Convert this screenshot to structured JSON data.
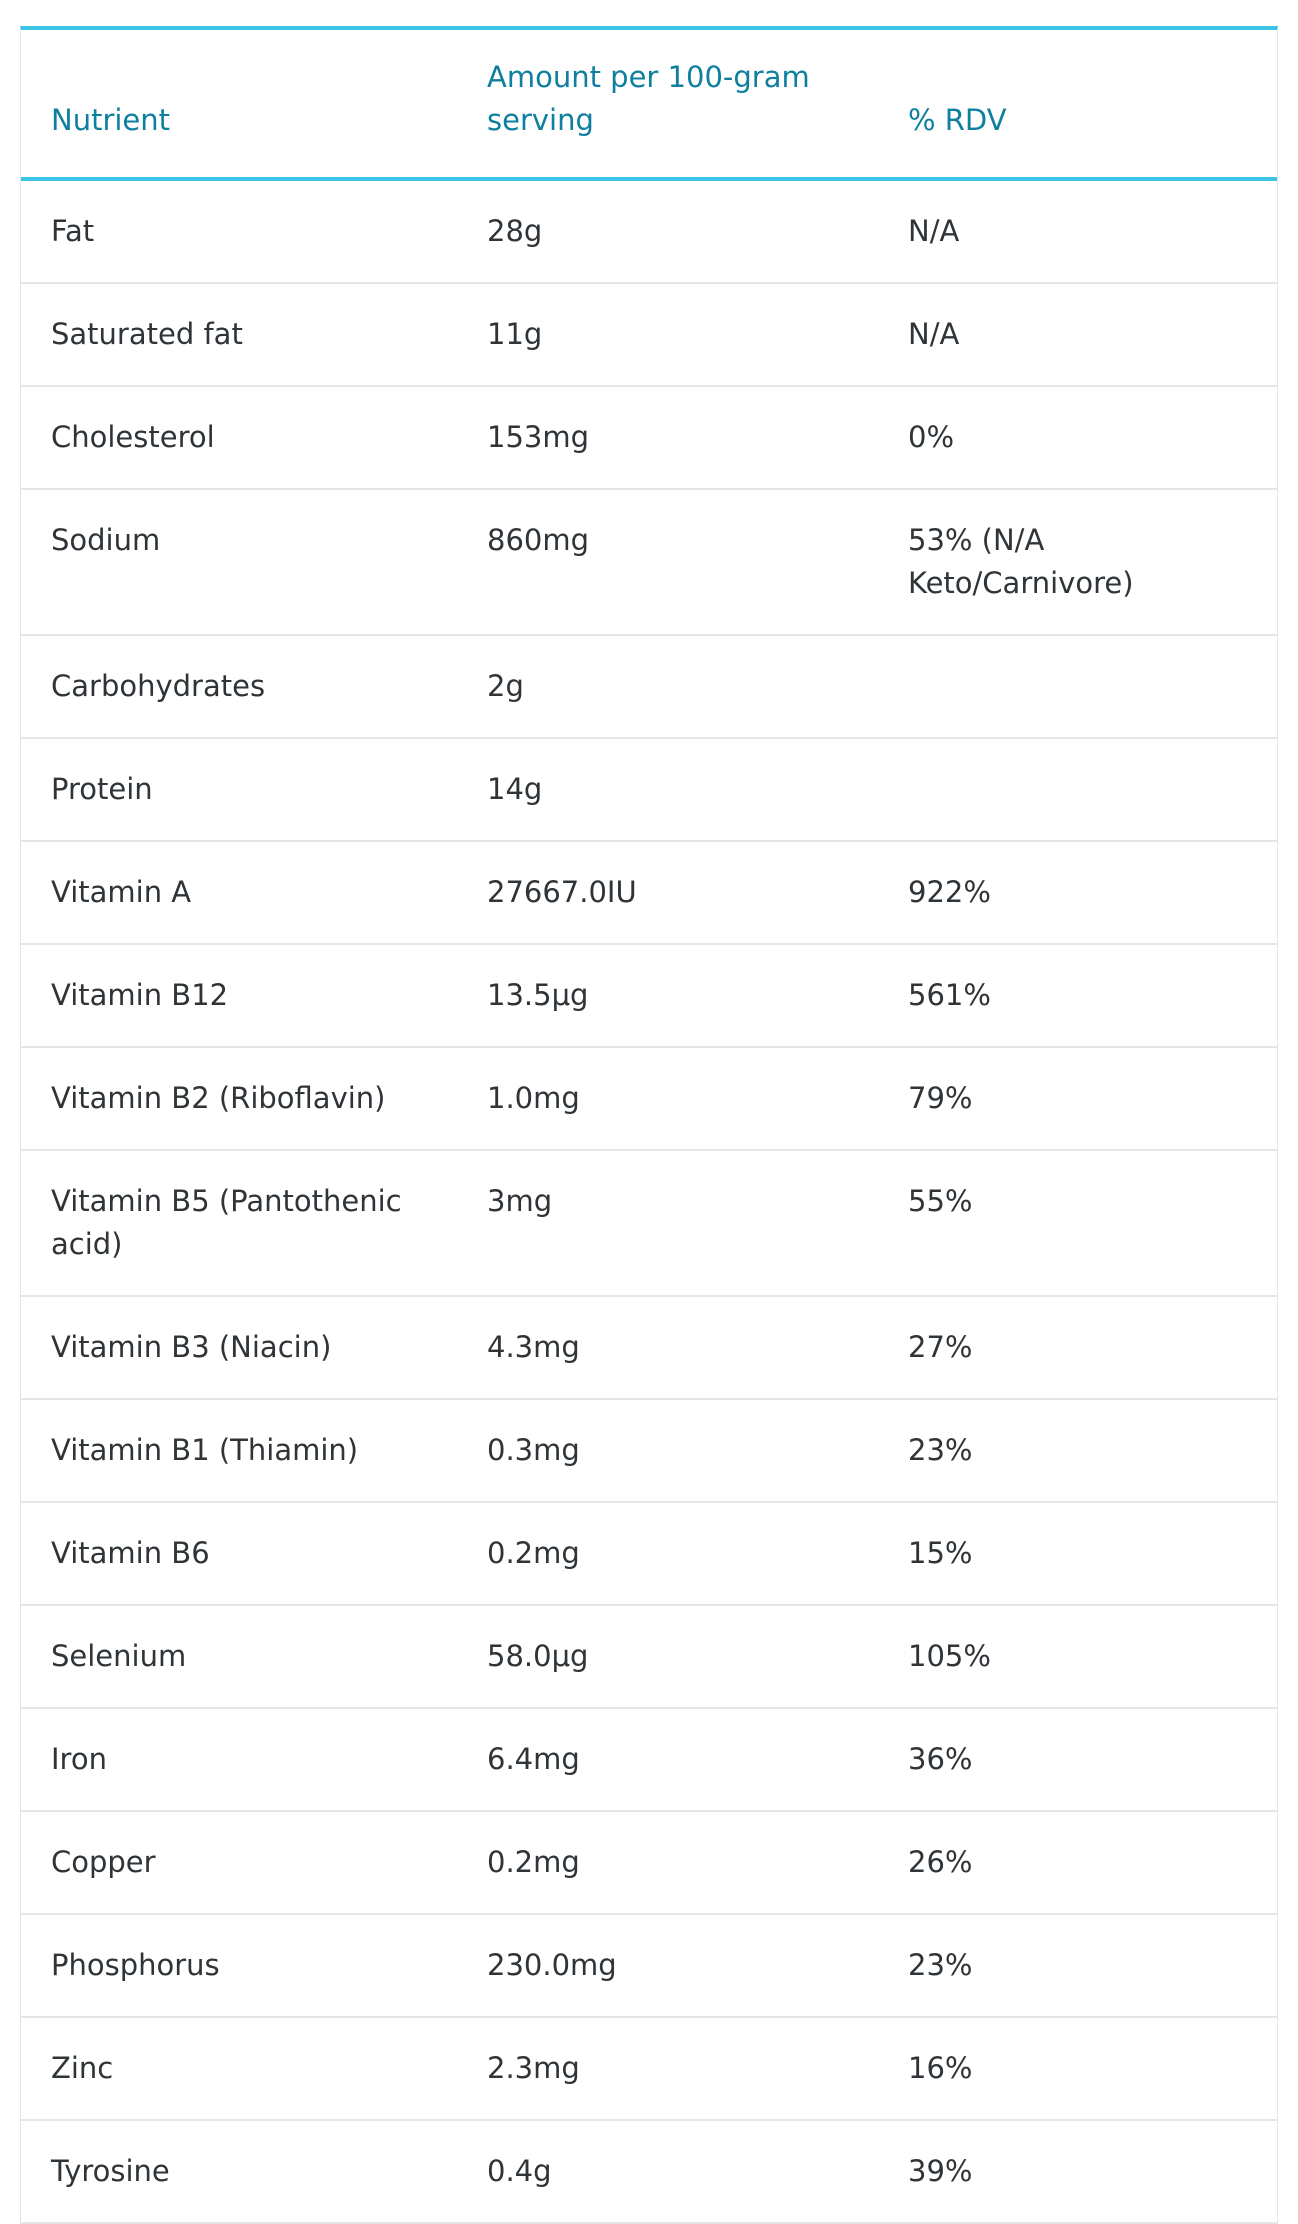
{
  "table": {
    "headers": [
      "Nutrient",
      "Amount per 100-gram serving",
      "% RDV"
    ],
    "rows": [
      [
        "Fat",
        "28g",
        "N/A"
      ],
      [
        "Saturated fat",
        "11g",
        "N/A"
      ],
      [
        "Cholesterol",
        "153mg",
        "0%"
      ],
      [
        "Sodium",
        "860mg",
        "53% (N/A Keto/Carnivore)"
      ],
      [
        "Carbohydrates",
        "2g",
        ""
      ],
      [
        "Protein",
        "14g",
        ""
      ],
      [
        "Vitamin A",
        "27667.0IU",
        "922%"
      ],
      [
        "Vitamin B12",
        "13.5μg",
        "561%"
      ],
      [
        "Vitamin B2 (Riboflavin)",
        "1.0mg",
        "79%"
      ],
      [
        "Vitamin B5 (Pantothenic acid)",
        "3mg",
        "55%"
      ],
      [
        "Vitamin B3 (Niacin)",
        "4.3mg",
        "27%"
      ],
      [
        "Vitamin B1 (Thiamin)",
        "0.3mg",
        "23%"
      ],
      [
        "Vitamin B6",
        "0.2mg",
        "15%"
      ],
      [
        "Selenium",
        "58.0μg",
        "105%"
      ],
      [
        "Iron",
        "6.4mg",
        "36%"
      ],
      [
        "Copper",
        "0.2mg",
        "26%"
      ],
      [
        "Phosphorus",
        "230.0mg",
        "23%"
      ],
      [
        "Zinc",
        "2.3mg",
        "16%"
      ],
      [
        "Tyrosine",
        "0.4g",
        "39%"
      ]
    ]
  },
  "colors": {
    "header_text": "#0f7fa0",
    "accent_border": "#3cc3e6",
    "body_text": "#2f3438",
    "row_divider": "#e4e6e8"
  }
}
